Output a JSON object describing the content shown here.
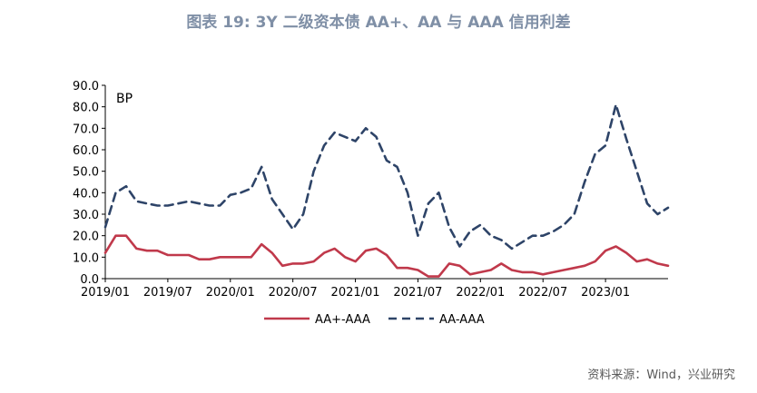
{
  "title": "图表 19: 3Y 二级资本债 AA+、AA 与 AAA 信用利差",
  "source": "资料来源：Wind，兴业研究",
  "colors": {
    "aa_plus": "#c0394b",
    "aa": "#2e4468",
    "title": "#7f8fa6"
  },
  "chart_data": {
    "type": "line",
    "title": "图表 19: 3Y 二级资本债 AA+、AA 与 AAA 信用利差",
    "ylabel": "BP",
    "xlabel": "",
    "ylim": [
      0,
      90
    ],
    "yticks": [
      "0.0",
      "10.0",
      "20.0",
      "30.0",
      "40.0",
      "50.0",
      "60.0",
      "70.0",
      "80.0",
      "90.0"
    ],
    "xlim": [
      "2019-01",
      "2023-07"
    ],
    "x_tick_labels": [
      "2019/01",
      "2019/07",
      "2020/01",
      "2020/07",
      "2021/01",
      "2021/07",
      "2022/01",
      "2022/07",
      "2023/01"
    ],
    "legend": "bottom",
    "grid": false,
    "x": [
      "2019-01",
      "2019-02",
      "2019-03",
      "2019-04",
      "2019-05",
      "2019-06",
      "2019-07",
      "2019-08",
      "2019-09",
      "2019-10",
      "2019-11",
      "2019-12",
      "2020-01",
      "2020-02",
      "2020-03",
      "2020-04",
      "2020-05",
      "2020-06",
      "2020-07",
      "2020-08",
      "2020-09",
      "2020-10",
      "2020-11",
      "2020-12",
      "2021-01",
      "2021-02",
      "2021-03",
      "2021-04",
      "2021-05",
      "2021-06",
      "2021-07",
      "2021-08",
      "2021-09",
      "2021-10",
      "2021-11",
      "2021-12",
      "2022-01",
      "2022-02",
      "2022-03",
      "2022-04",
      "2022-05",
      "2022-06",
      "2022-07",
      "2022-08",
      "2022-09",
      "2022-10",
      "2022-11",
      "2022-12",
      "2023-01",
      "2023-02",
      "2023-03",
      "2023-04",
      "2023-05",
      "2023-06",
      "2023-07"
    ],
    "series": [
      {
        "name": "AA+-AAA",
        "style": "solid",
        "values": [
          12,
          20,
          20,
          14,
          13,
          13,
          11,
          11,
          11,
          9,
          9,
          10,
          10,
          10,
          10,
          16,
          12,
          6,
          7,
          7,
          8,
          12,
          14,
          10,
          8,
          13,
          14,
          11,
          5,
          5,
          4,
          1,
          1,
          7,
          6,
          2,
          3,
          4,
          7,
          4,
          3,
          3,
          2,
          3,
          4,
          5,
          6,
          8,
          13,
          15,
          12,
          8,
          9,
          7,
          6
        ]
      },
      {
        "name": "AA-AAA",
        "style": "dashed",
        "values": [
          24,
          40,
          43,
          36,
          35,
          34,
          34,
          35,
          36,
          35,
          34,
          34,
          39,
          40,
          42,
          52,
          37,
          30,
          23,
          30,
          50,
          62,
          68,
          66,
          64,
          70,
          66,
          55,
          52,
          40,
          20,
          35,
          40,
          24,
          15,
          22,
          25,
          20,
          18,
          14,
          17,
          20,
          20,
          22,
          25,
          30,
          45,
          58,
          62,
          81,
          65,
          50,
          35,
          30,
          33
        ]
      }
    ]
  }
}
